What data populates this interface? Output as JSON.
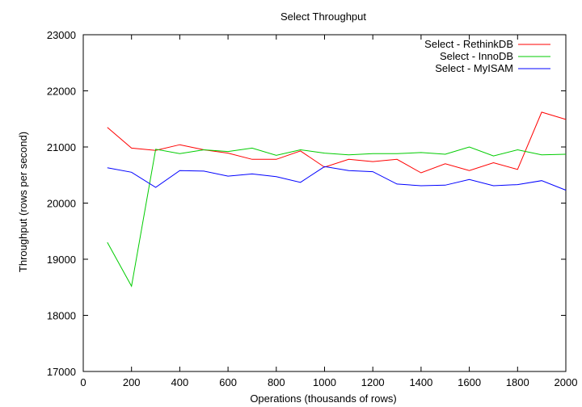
{
  "chart_data": {
    "type": "line",
    "title": "Select Throughput",
    "xlabel": "Operations (thousands of rows)",
    "ylabel": "Throughput (rows per second)",
    "xlim": [
      0,
      2000
    ],
    "ylim": [
      17000,
      23000
    ],
    "x_ticks": [
      "0",
      "200",
      "400",
      "600",
      "800",
      "1000",
      "1200",
      "1400",
      "1600",
      "1800",
      "2000"
    ],
    "y_ticks": [
      "17000",
      "18000",
      "19000",
      "20000",
      "21000",
      "22000",
      "23000"
    ],
    "grid": false,
    "legend_position": "top-right",
    "x": [
      100,
      200,
      300,
      400,
      500,
      600,
      700,
      800,
      900,
      1000,
      1100,
      1200,
      1300,
      1400,
      1500,
      1600,
      1700,
      1800,
      1900,
      2000
    ],
    "series": [
      {
        "name": "Select - RethinkDB",
        "color": "#ff0000",
        "values": [
          21350,
          20980,
          20940,
          21040,
          20950,
          20890,
          20780,
          20780,
          20930,
          20640,
          20780,
          20740,
          20780,
          20540,
          20700,
          20580,
          20720,
          20600,
          21620,
          21490
        ]
      },
      {
        "name": "Select - InnoDB",
        "color": "#00cc00",
        "values": [
          19300,
          18520,
          20960,
          20880,
          20950,
          20920,
          20980,
          20850,
          20950,
          20890,
          20860,
          20880,
          20880,
          20900,
          20870,
          21000,
          20840,
          20950,
          20860,
          20870
        ]
      },
      {
        "name": "Select - MyISAM",
        "color": "#0000ff",
        "values": [
          20630,
          20550,
          20280,
          20580,
          20570,
          20480,
          20520,
          20470,
          20370,
          20650,
          20580,
          20560,
          20340,
          20310,
          20320,
          20420,
          20310,
          20330,
          20400,
          20230
        ]
      }
    ]
  }
}
